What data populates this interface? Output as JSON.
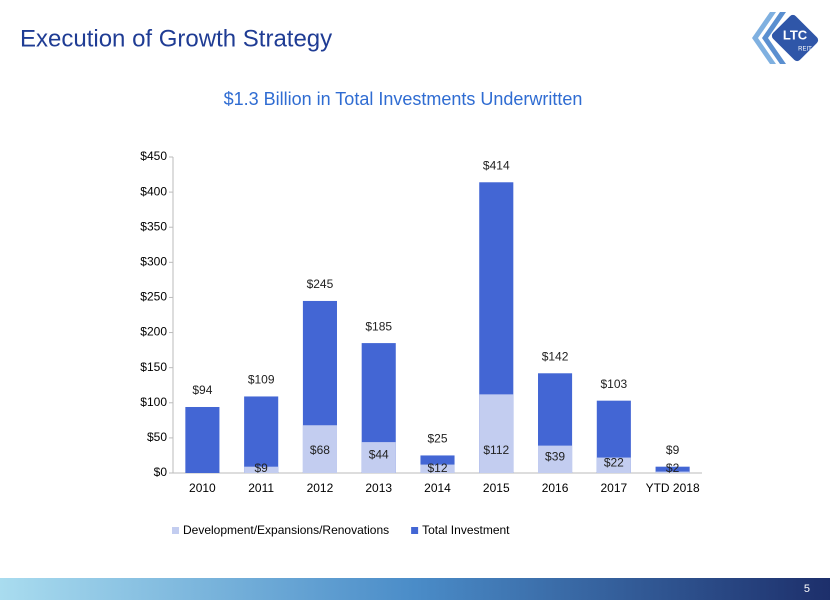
{
  "header": {
    "title": "Execution of Growth Strategy",
    "logo_text": "LTC",
    "logo_sub": "REIT"
  },
  "page_number": "5",
  "chart_data": {
    "type": "overlay_bar",
    "title": "$1.3 Billion in Total Investments Underwritten",
    "categories": [
      "2010",
      "2011",
      "2012",
      "2013",
      "2014",
      "2015",
      "2016",
      "2017",
      "YTD 2018"
    ],
    "series": [
      {
        "name": "Development/Expansions/Renovations",
        "color": "#c3cdf0",
        "values": [
          null,
          9,
          68,
          44,
          12,
          112,
          39,
          22,
          2
        ],
        "value_labels": [
          null,
          "$9",
          "$68",
          "$44",
          "$12",
          "$112",
          "$39",
          "$22",
          "$2"
        ]
      },
      {
        "name": "Total Investment",
        "color": "#4366d4",
        "values": [
          94,
          109,
          245,
          185,
          25,
          414,
          142,
          103,
          9
        ],
        "value_labels": [
          "$94",
          "$109",
          "$245",
          "$185",
          "$25",
          "$414",
          "$142",
          "$103",
          "$9"
        ]
      }
    ],
    "ylim": [
      0,
      450
    ],
    "yticks": [
      {
        "value": 0,
        "label": "$0"
      },
      {
        "value": 50,
        "label": "$50"
      },
      {
        "value": 100,
        "label": "$100"
      },
      {
        "value": 150,
        "label": "$150"
      },
      {
        "value": 200,
        "label": "$200"
      },
      {
        "value": 250,
        "label": "$250"
      },
      {
        "value": 300,
        "label": "$300"
      },
      {
        "value": 350,
        "label": "$350"
      },
      {
        "value": 400,
        "label": "$400"
      },
      {
        "value": 450,
        "label": "$450"
      }
    ],
    "grid": false,
    "legend": "bottom"
  }
}
